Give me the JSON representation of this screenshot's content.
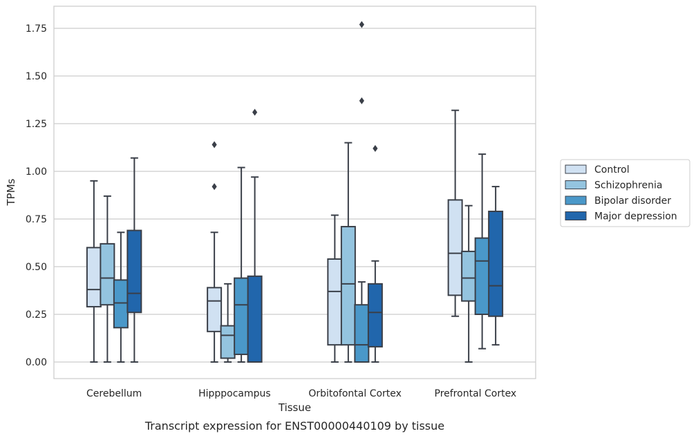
{
  "caption": "Transcript expression for ENST00000440109 by tissue",
  "chart_data": {
    "type": "boxplot",
    "xlabel": "Tissue",
    "ylabel": "TPMs",
    "ylim": [
      -0.09,
      1.86
    ],
    "yticks": [
      0.0,
      0.25,
      0.5,
      0.75,
      1.0,
      1.25,
      1.5,
      1.75
    ],
    "ytick_labels": [
      "0.00",
      "0.25",
      "0.50",
      "0.75",
      "1.00",
      "1.25",
      "1.50",
      "1.75"
    ],
    "grid": "horizontal",
    "legend_position": "right",
    "categories": [
      "Cerebellum",
      "Hipppocampus",
      "Orbitofontal Cortex",
      "Prefrontal Cortex"
    ],
    "series": [
      {
        "name": "Control",
        "color": "#d0e1f2",
        "boxes": [
          {
            "whisker_low": 0.0,
            "q1": 0.29,
            "median": 0.38,
            "q3": 0.6,
            "whisker_high": 0.95,
            "outliers": []
          },
          {
            "whisker_low": 0.0,
            "q1": 0.16,
            "median": 0.32,
            "q3": 0.39,
            "whisker_high": 0.68,
            "outliers": [
              0.92,
              1.14
            ]
          },
          {
            "whisker_low": 0.0,
            "q1": 0.09,
            "median": 0.37,
            "q3": 0.54,
            "whisker_high": 0.77,
            "outliers": []
          },
          {
            "whisker_low": 0.24,
            "q1": 0.35,
            "median": 0.57,
            "q3": 0.85,
            "whisker_high": 1.32,
            "outliers": []
          }
        ]
      },
      {
        "name": "Schizophrenia",
        "color": "#94c4df",
        "boxes": [
          {
            "whisker_low": 0.0,
            "q1": 0.3,
            "median": 0.44,
            "q3": 0.62,
            "whisker_high": 0.87,
            "outliers": []
          },
          {
            "whisker_low": 0.0,
            "q1": 0.02,
            "median": 0.14,
            "q3": 0.19,
            "whisker_high": 0.41,
            "outliers": []
          },
          {
            "whisker_low": 0.0,
            "q1": 0.09,
            "median": 0.41,
            "q3": 0.71,
            "whisker_high": 1.15,
            "outliers": []
          },
          {
            "whisker_low": 0.0,
            "q1": 0.32,
            "median": 0.44,
            "q3": 0.58,
            "whisker_high": 0.82,
            "outliers": []
          }
        ]
      },
      {
        "name": "Bipolar disorder",
        "color": "#4a98c9",
        "boxes": [
          {
            "whisker_low": 0.0,
            "q1": 0.18,
            "median": 0.31,
            "q3": 0.43,
            "whisker_high": 0.68,
            "outliers": []
          },
          {
            "whisker_low": 0.0,
            "q1": 0.04,
            "median": 0.3,
            "q3": 0.44,
            "whisker_high": 1.02,
            "outliers": []
          },
          {
            "whisker_low": 0.0,
            "q1": 0.0,
            "median": 0.09,
            "q3": 0.3,
            "whisker_high": 0.42,
            "outliers": [
              1.37,
              1.77
            ]
          },
          {
            "whisker_low": 0.07,
            "q1": 0.25,
            "median": 0.53,
            "q3": 0.65,
            "whisker_high": 1.09,
            "outliers": []
          }
        ]
      },
      {
        "name": "Major depression",
        "color": "#2166ac",
        "boxes": [
          {
            "whisker_low": 0.0,
            "q1": 0.26,
            "median": 0.36,
            "q3": 0.69,
            "whisker_high": 1.07,
            "outliers": []
          },
          {
            "whisker_low": 0.0,
            "q1": 0.0,
            "median": 0.0,
            "q3": 0.45,
            "whisker_high": 0.97,
            "outliers": [
              1.31
            ]
          },
          {
            "whisker_low": 0.0,
            "q1": 0.08,
            "median": 0.26,
            "q3": 0.41,
            "whisker_high": 0.53,
            "outliers": [
              1.12
            ]
          },
          {
            "whisker_low": 0.09,
            "q1": 0.24,
            "median": 0.4,
            "q3": 0.79,
            "whisker_high": 0.92,
            "outliers": []
          }
        ]
      }
    ]
  }
}
